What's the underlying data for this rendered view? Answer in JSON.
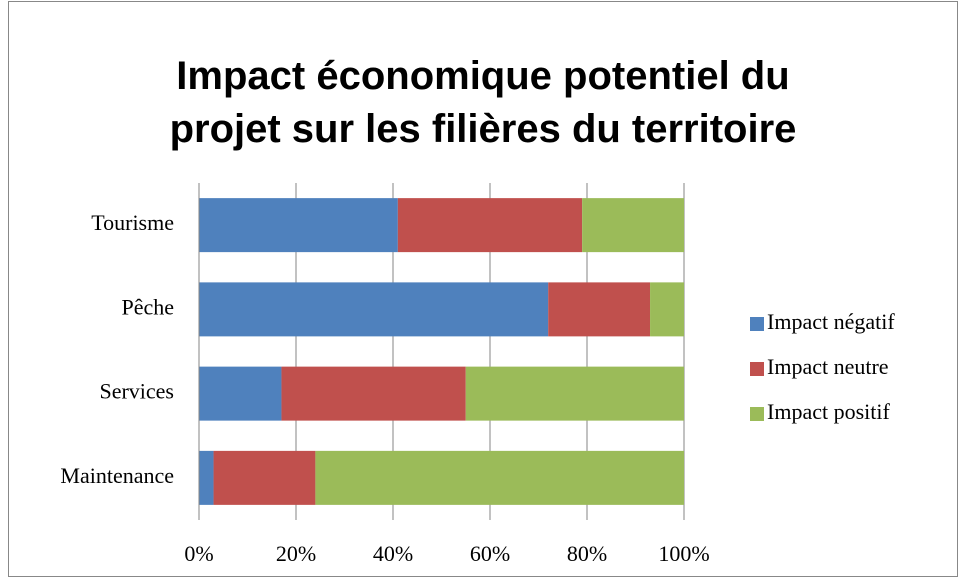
{
  "chart_data": {
    "type": "stacked_barh",
    "title": "Impact économique potentiel du projet sur les filières du territoire",
    "categories": [
      "Tourisme",
      "Pêche",
      "Services",
      "Maintenance"
    ],
    "series": [
      {
        "name": "Impact négatif",
        "color": "#4f81bd",
        "values": [
          41,
          72,
          17,
          3
        ]
      },
      {
        "name": "Impact neutre",
        "color": "#c0504d",
        "values": [
          38,
          21,
          38,
          21
        ]
      },
      {
        "name": "Impact positif",
        "color": "#9bbb59",
        "values": [
          21,
          7,
          45,
          76
        ]
      }
    ],
    "xlim": [
      0,
      100
    ],
    "xticks": [
      {
        "value": 0,
        "label": "0%"
      },
      {
        "value": 20,
        "label": "20%"
      },
      {
        "value": 40,
        "label": "40%"
      },
      {
        "value": 60,
        "label": "60%"
      },
      {
        "value": 80,
        "label": "80%"
      },
      {
        "value": 100,
        "label": "100%"
      }
    ],
    "grid": true,
    "legend": "right"
  }
}
